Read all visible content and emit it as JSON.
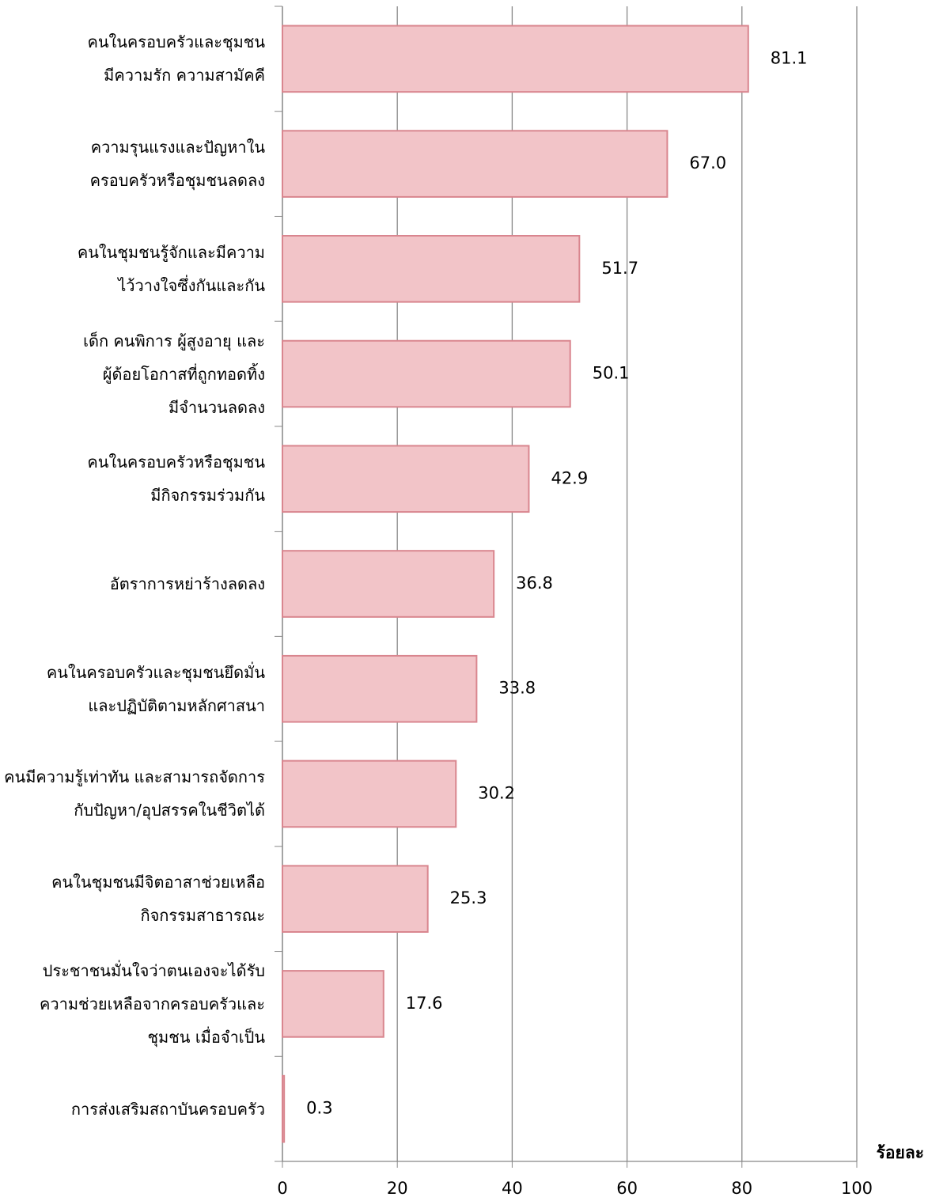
{
  "chart_data": {
    "type": "hbar",
    "categories": [
      "คนในครอบครัวและชุมชน\nมีความรัก ความสามัคคี",
      "ความรุนแรงและปัญหาใน\nครอบครัวหรือชุมชนลดลง",
      "คนในชุมชนรู้จักและมีความ\nไว้วางใจซึ่งกันและกัน",
      "เด็ก คนพิการ ผู้สูงอายุ และ\nผู้ด้อยโอกาสที่ถูกทอดทิ้ง\nมีจำนวนลดลง",
      "คนในครอบครัวหรือชุมชน\nมีกิจกรรมร่วมกัน",
      "อัตราการหย่าร้างลดลง",
      "คนในครอบครัวและชุมชนยึดมั่น\nและปฏิบัติตามหลักศาสนา",
      "คนมีความรู้เท่าทัน และสามารถจัดการ\nกับปัญหา/อุปสรรคในชีวิตได้",
      "คนในชุมชนมีจิตอาสาช่วยเหลือ\nกิจกรรมสาธารณะ",
      "ประชาชนมั่นใจว่าตนเองจะได้รับ\nความช่วยเหลือจากครอบครัวและ\nชุมชน เมื่อจำเป็น",
      "การส่งเสริมสถาบันครอบครัว"
    ],
    "values": [
      81.1,
      67.0,
      51.7,
      50.1,
      42.9,
      36.8,
      33.8,
      30.2,
      25.3,
      17.6,
      0.3
    ],
    "value_labels": [
      "81.1",
      "67.0",
      "51.7",
      "50.1",
      "42.9",
      "36.8",
      "33.8",
      "30.2",
      "25.3",
      "17.6",
      "0.3"
    ],
    "color": "#f2c4c8",
    "edge_color": "#d9868f",
    "x_label": "ร้อยละ",
    "xlim": [
      0,
      100
    ],
    "xticks": [
      0,
      20,
      40,
      60,
      80,
      100
    ],
    "grid": true
  }
}
